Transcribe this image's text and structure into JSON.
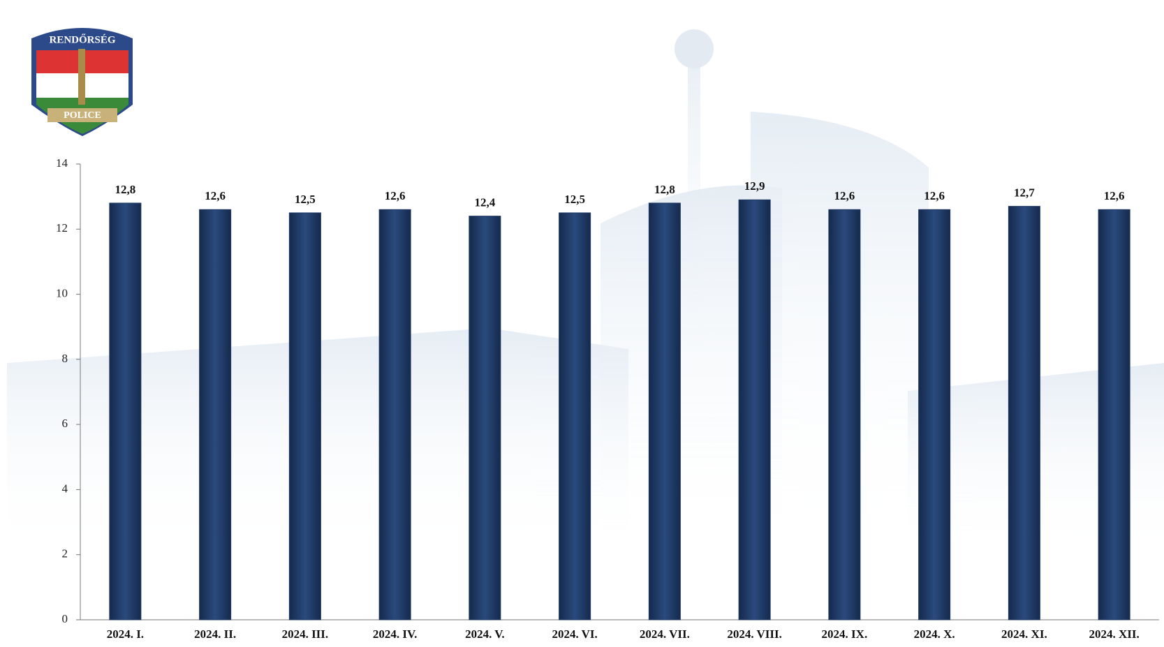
{
  "logo": {
    "top": "RENDŐRSÉG",
    "bottom": "POLICE"
  },
  "chart_data": {
    "type": "bar",
    "categories": [
      "2024. I.",
      "2024. II.",
      "2024. III.",
      "2024. IV.",
      "2024. V.",
      "2024. VI.",
      "2024. VII.",
      "2024. VIII.",
      "2024. IX.",
      "2024. X.",
      "2024. XI.",
      "2024. XII."
    ],
    "values": [
      12.8,
      12.6,
      12.5,
      12.6,
      12.4,
      12.5,
      12.8,
      12.9,
      12.6,
      12.6,
      12.7,
      12.6
    ],
    "value_labels": [
      "12,8",
      "12,6",
      "12,5",
      "12,6",
      "12,4",
      "12,5",
      "12,8",
      "12,9",
      "12,6",
      "12,6",
      "12,7",
      "12,6"
    ],
    "color": "#1f3864",
    "ylim": [
      0,
      14
    ],
    "yticks": [
      0,
      2,
      4,
      6,
      8,
      10,
      12,
      14
    ],
    "grid": false
  }
}
